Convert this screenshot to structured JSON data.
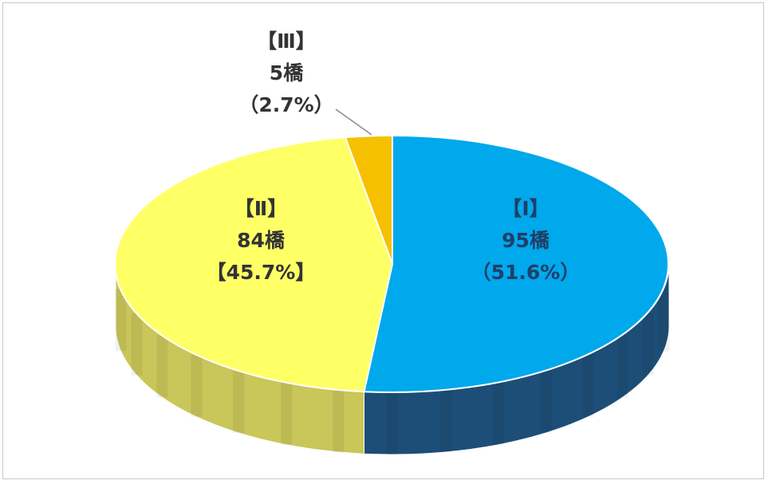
{
  "chart_data": {
    "type": "pie",
    "style": "3d",
    "slices": [
      {
        "category": "【Ⅰ】",
        "value": 95,
        "value_label": "95橋",
        "percent_label": "（51.6%）",
        "color": "#00a8ec",
        "side_color": "#1d4e77"
      },
      {
        "category": "【Ⅱ】",
        "value": 84,
        "value_label": "84橋",
        "percent_label": "【45.7%】",
        "color": "#ffff66",
        "side_color": "#c9c65a"
      },
      {
        "category": "【Ⅲ】",
        "value": 5,
        "value_label": "5橋",
        "percent_label": "（2.7%）",
        "color": "#f5c000",
        "side_color": "#b38b00"
      }
    ]
  }
}
